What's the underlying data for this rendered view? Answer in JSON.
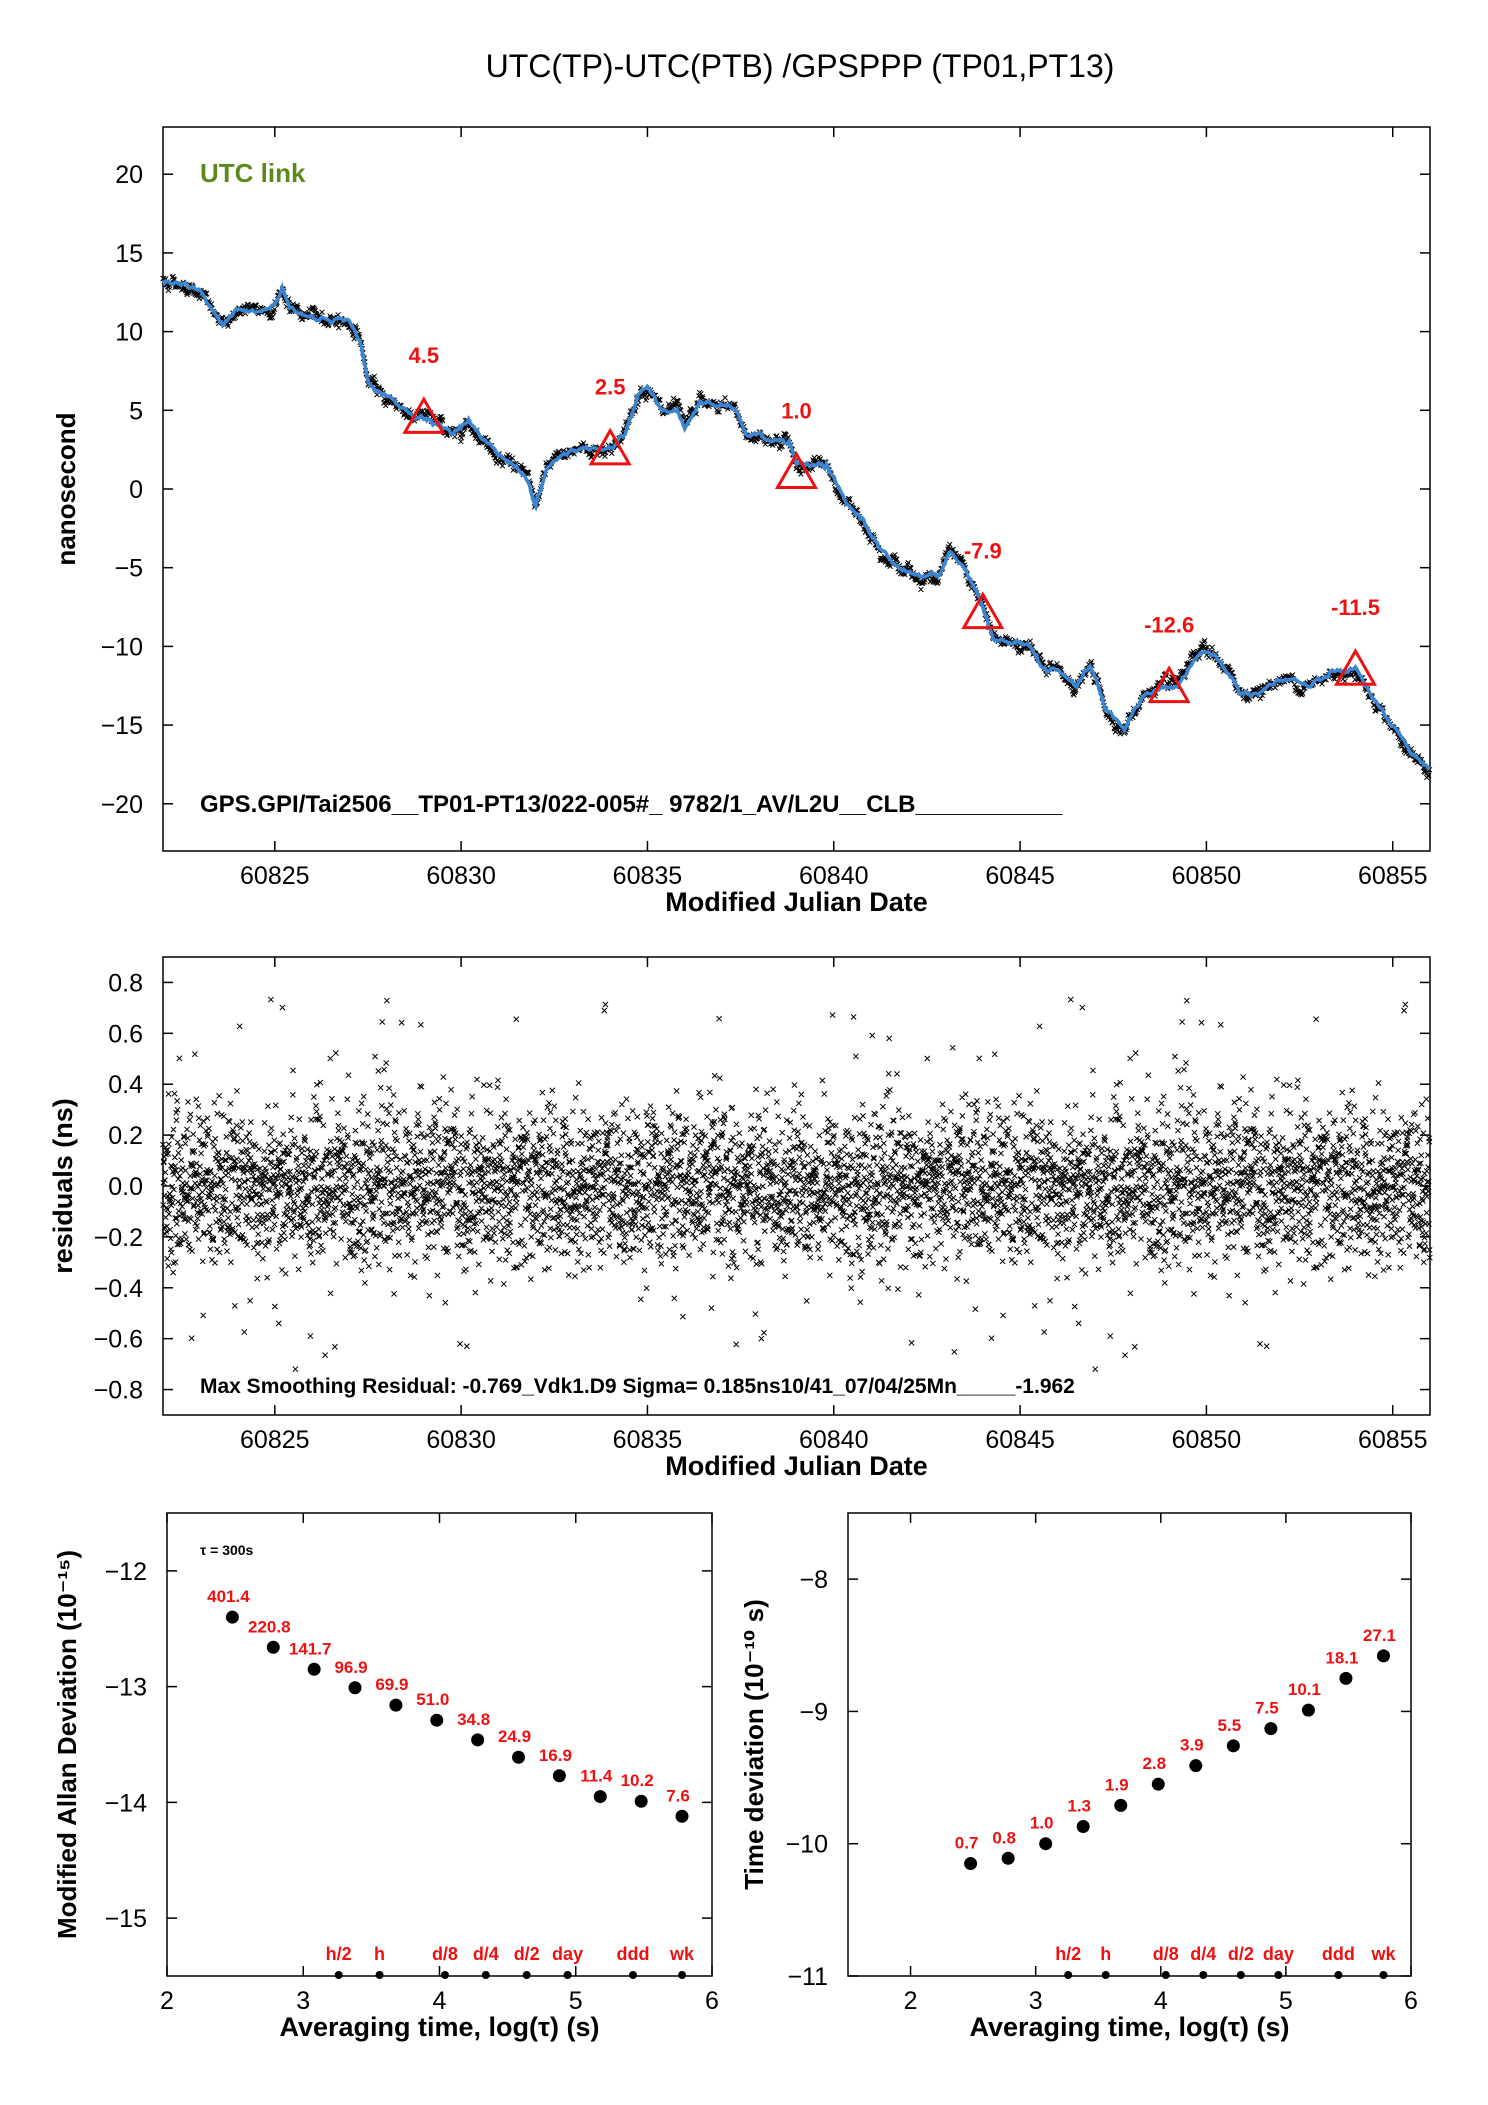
{
  "title": "UTC(TP)-UTC(PTB)  /GPSPPP  (TP01,PT13)",
  "colors": {
    "smooth": "#3a86d4",
    "raw": "#000000",
    "red": "#ee1111",
    "green": "#5b8a1a",
    "dots": "#000000"
  },
  "chart_data": [
    {
      "type": "line",
      "name": "time-comparison",
      "badge": "UTC link",
      "xlabel": "Modified Julian Date",
      "ylabel": "nanosecond",
      "xlim": [
        60822,
        60856
      ],
      "ylim": [
        -23,
        23
      ],
      "xticks": [
        60825,
        60830,
        60835,
        60840,
        60845,
        60850,
        60855
      ],
      "yticks": [
        20,
        15,
        10,
        5,
        0,
        -5,
        -10,
        -15,
        -20
      ],
      "ytick_labels": [
        "20",
        "15",
        "10",
        "5",
        "0",
        "−5",
        "−10",
        "−15",
        "−20"
      ],
      "footer": "GPS.GPI/Tai2506__TP01-PT13/022-005#_  9782/1_AV/L2U__CLB___________",
      "series_points": [
        [
          60822.0,
          13.3
        ],
        [
          60822.5,
          13.0
        ],
        [
          60823.0,
          12.6
        ],
        [
          60823.3,
          11.4
        ],
        [
          60823.6,
          10.3
        ],
        [
          60824.0,
          11.4
        ],
        [
          60824.5,
          11.2
        ],
        [
          60825.0,
          11.6
        ],
        [
          60825.2,
          12.8
        ],
        [
          60825.4,
          11.5
        ],
        [
          60825.8,
          11.0
        ],
        [
          60826.2,
          10.8
        ],
        [
          60826.6,
          10.9
        ],
        [
          60827.0,
          10.5
        ],
        [
          60827.3,
          9.6
        ],
        [
          60827.5,
          6.8
        ],
        [
          60827.8,
          6.1
        ],
        [
          60828.2,
          5.5
        ],
        [
          60828.6,
          4.8
        ],
        [
          60829.0,
          4.6
        ],
        [
          60829.4,
          4.2
        ],
        [
          60829.8,
          3.4
        ],
        [
          60830.2,
          4.4
        ],
        [
          60830.5,
          3.4
        ],
        [
          60831.0,
          2.2
        ],
        [
          60831.5,
          1.5
        ],
        [
          60831.8,
          0.5
        ],
        [
          60832.0,
          -1.1
        ],
        [
          60832.3,
          1.2
        ],
        [
          60832.7,
          2.2
        ],
        [
          60833.2,
          2.6
        ],
        [
          60833.6,
          2.5
        ],
        [
          60834.0,
          2.6
        ],
        [
          60834.4,
          3.6
        ],
        [
          60834.8,
          6.2
        ],
        [
          60835.0,
          6.6
        ],
        [
          60835.4,
          4.8
        ],
        [
          60835.8,
          5.0
        ],
        [
          60836.0,
          3.8
        ],
        [
          60836.4,
          5.6
        ],
        [
          60836.8,
          5.2
        ],
        [
          60837.3,
          5.2
        ],
        [
          60837.7,
          3.4
        ],
        [
          60838.2,
          3.2
        ],
        [
          60838.8,
          3.0
        ],
        [
          60839.0,
          1.6
        ],
        [
          60839.4,
          1.4
        ],
        [
          60839.8,
          1.5
        ],
        [
          60840.3,
          -0.9
        ],
        [
          60840.8,
          -2.0
        ],
        [
          60841.2,
          -3.6
        ],
        [
          60841.8,
          -5.0
        ],
        [
          60842.2,
          -5.6
        ],
        [
          60842.8,
          -5.6
        ],
        [
          60843.1,
          -4.0
        ],
        [
          60843.5,
          -5.0
        ],
        [
          60843.9,
          -7.0
        ],
        [
          60844.3,
          -9.5
        ],
        [
          60844.7,
          -9.8
        ],
        [
          60845.2,
          -9.7
        ],
        [
          60845.6,
          -11.4
        ],
        [
          60846.0,
          -11.6
        ],
        [
          60846.5,
          -12.6
        ],
        [
          60846.9,
          -11.3
        ],
        [
          60847.3,
          -14.0
        ],
        [
          60847.8,
          -15.4
        ],
        [
          60848.3,
          -13.1
        ],
        [
          60848.8,
          -12.6
        ],
        [
          60849.2,
          -12.6
        ],
        [
          60849.5,
          -11.5
        ],
        [
          60849.9,
          -10.2
        ],
        [
          60850.4,
          -11.0
        ],
        [
          60850.9,
          -12.9
        ],
        [
          60851.4,
          -12.9
        ],
        [
          60851.9,
          -12.2
        ],
        [
          60852.4,
          -12.2
        ],
        [
          60852.8,
          -12.6
        ],
        [
          60853.2,
          -12.0
        ],
        [
          60853.6,
          -11.5
        ],
        [
          60854.0,
          -11.5
        ],
        [
          60854.5,
          -13.4
        ],
        [
          60855.0,
          -15.0
        ],
        [
          60855.5,
          -17.0
        ],
        [
          60856.0,
          -18.0
        ]
      ],
      "markers": [
        {
          "x": 60829,
          "y": 4.5,
          "label": "4.5"
        },
        {
          "x": 60834,
          "y": 2.5,
          "label": "2.5"
        },
        {
          "x": 60839,
          "y": 1.0,
          "label": "1.0"
        },
        {
          "x": 60844,
          "y": -7.9,
          "label": "-7.9"
        },
        {
          "x": 60849,
          "y": -12.6,
          "label": "-12.6"
        },
        {
          "x": 60854,
          "y": -11.5,
          "label": "-11.5"
        }
      ]
    },
    {
      "type": "scatter",
      "name": "residuals",
      "xlabel": "Modified Julian Date",
      "ylabel": "residuals (ns)",
      "xlim": [
        60822,
        60856
      ],
      "ylim": [
        -0.9,
        0.9
      ],
      "xticks": [
        60825,
        60830,
        60835,
        60840,
        60845,
        60850,
        60855
      ],
      "yticks": [
        0.8,
        0.6,
        0.4,
        0.2,
        0.0,
        -0.2,
        -0.4,
        -0.6,
        -0.8
      ],
      "ytick_labels": [
        "0.8",
        "0.6",
        "0.4",
        "0.2",
        "0.0",
        "−0.2",
        "−0.4",
        "−0.6",
        "−0.8"
      ],
      "distribution": {
        "sigma": 0.185,
        "max_abs": 0.77
      },
      "footer": "Max Smoothing Residual: -0.769_Vdk1.D9  Sigma= 0.185ns10/41_07/04/25Mn_____-1.962"
    },
    {
      "type": "scatter",
      "name": "modified-allan-deviation",
      "xlabel": "Averaging time, log(τ) (s)",
      "ylabel": "Modified Allan Deviation (10⁻¹⁵)",
      "note": "τ = 300s",
      "xlim": [
        2,
        6
      ],
      "ylim": [
        -15.5,
        -11.5
      ],
      "xticks": [
        2,
        3,
        4,
        5,
        6
      ],
      "yticks": [
        -12,
        -13,
        -14,
        -15
      ],
      "ytick_labels": [
        "−12",
        "−13",
        "−14",
        "−15"
      ],
      "points": [
        {
          "x": 2.48,
          "y": -12.4,
          "label": "401.4"
        },
        {
          "x": 2.78,
          "y": -12.66,
          "label": "220.8"
        },
        {
          "x": 3.08,
          "y": -12.85,
          "label": "141.7"
        },
        {
          "x": 3.38,
          "y": -13.01,
          "label": "96.9"
        },
        {
          "x": 3.68,
          "y": -13.16,
          "label": "69.9"
        },
        {
          "x": 3.98,
          "y": -13.29,
          "label": "51.0"
        },
        {
          "x": 4.28,
          "y": -13.46,
          "label": "34.8"
        },
        {
          "x": 4.58,
          "y": -13.61,
          "label": "24.9"
        },
        {
          "x": 4.88,
          "y": -13.77,
          "label": "16.9"
        },
        {
          "x": 5.18,
          "y": -13.95,
          "label": "11.4"
        },
        {
          "x": 5.48,
          "y": -13.99,
          "label": "10.2"
        },
        {
          "x": 5.78,
          "y": -14.12,
          "label": "7.6"
        }
      ],
      "scale_marks": [
        {
          "x": 3.26,
          "label": "h/2"
        },
        {
          "x": 3.56,
          "label": "h"
        },
        {
          "x": 4.04,
          "label": "d/8"
        },
        {
          "x": 4.34,
          "label": "d/4"
        },
        {
          "x": 4.64,
          "label": "d/2"
        },
        {
          "x": 4.94,
          "label": "day"
        },
        {
          "x": 5.42,
          "label": "ddd"
        },
        {
          "x": 5.78,
          "label": "wk"
        }
      ]
    },
    {
      "type": "scatter",
      "name": "time-deviation",
      "xlabel": "Averaging time, log(τ) (s)",
      "ylabel": "Time deviation (10⁻¹⁰ s)",
      "xlim": [
        1.5,
        6
      ],
      "ylim": [
        -11,
        -7.5
      ],
      "xticks": [
        2,
        3,
        4,
        5,
        6
      ],
      "yticks": [
        -8,
        -9,
        -10,
        -11
      ],
      "ytick_labels": [
        "−8",
        "−9",
        "−10",
        "−11"
      ],
      "points": [
        {
          "x": 2.48,
          "y": -10.15,
          "label": "0.7"
        },
        {
          "x": 2.78,
          "y": -10.11,
          "label": "0.8"
        },
        {
          "x": 3.08,
          "y": -10.0,
          "label": "1.0"
        },
        {
          "x": 3.38,
          "y": -9.87,
          "label": "1.3"
        },
        {
          "x": 3.68,
          "y": -9.71,
          "label": "1.9"
        },
        {
          "x": 3.98,
          "y": -9.55,
          "label": "2.8"
        },
        {
          "x": 4.28,
          "y": -9.41,
          "label": "3.9"
        },
        {
          "x": 4.58,
          "y": -9.26,
          "label": "5.5"
        },
        {
          "x": 4.88,
          "y": -9.13,
          "label": "7.5"
        },
        {
          "x": 5.18,
          "y": -8.99,
          "label": "10.1"
        },
        {
          "x": 5.48,
          "y": -8.75,
          "label": "18.1"
        },
        {
          "x": 5.78,
          "y": -8.58,
          "label": "27.1"
        }
      ],
      "scale_marks": [
        {
          "x": 3.26,
          "label": "h/2"
        },
        {
          "x": 3.56,
          "label": "h"
        },
        {
          "x": 4.04,
          "label": "d/8"
        },
        {
          "x": 4.34,
          "label": "d/4"
        },
        {
          "x": 4.64,
          "label": "d/2"
        },
        {
          "x": 4.94,
          "label": "day"
        },
        {
          "x": 5.42,
          "label": "ddd"
        },
        {
          "x": 5.78,
          "label": "wk"
        }
      ]
    }
  ]
}
